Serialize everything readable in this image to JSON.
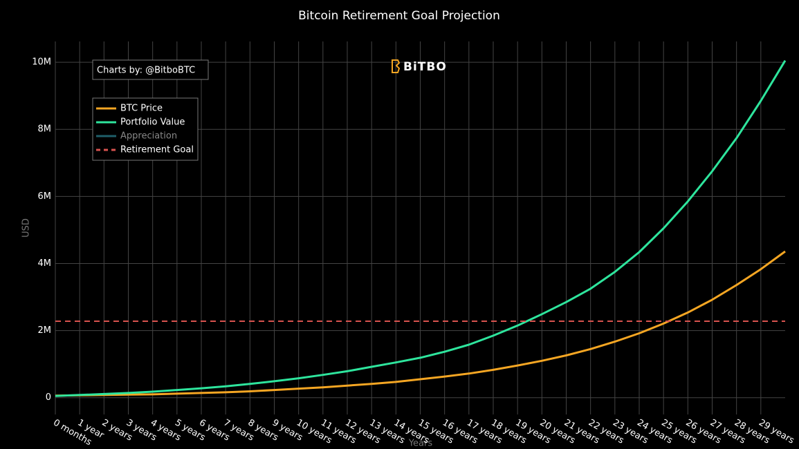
{
  "chart_data": {
    "type": "line",
    "title": "Bitcoin Retirement Goal Projection",
    "xlabel": "Years",
    "ylabel": "USD",
    "annotations": [
      "Charts by: @BitboBTC",
      "BiTBO"
    ],
    "x": [
      0,
      1,
      2,
      3,
      4,
      5,
      6,
      7,
      8,
      9,
      10,
      11,
      12,
      13,
      14,
      15,
      16,
      17,
      18,
      19,
      20,
      21,
      22,
      23,
      24,
      25,
      26,
      27,
      28,
      29,
      30
    ],
    "xlim": [
      0,
      30
    ],
    "xticks": [
      {
        "value": 0,
        "label": "0 months"
      },
      {
        "value": 1,
        "label": "1 year"
      },
      {
        "value": 2,
        "label": "2 years"
      },
      {
        "value": 3,
        "label": "3 years"
      },
      {
        "value": 4,
        "label": "4 years"
      },
      {
        "value": 5,
        "label": "5 years"
      },
      {
        "value": 6,
        "label": "6 years"
      },
      {
        "value": 7,
        "label": "7 years"
      },
      {
        "value": 8,
        "label": "8 years"
      },
      {
        "value": 9,
        "label": "9 years"
      },
      {
        "value": 10,
        "label": "10 years"
      },
      {
        "value": 11,
        "label": "11 years"
      },
      {
        "value": 12,
        "label": "12 years"
      },
      {
        "value": 13,
        "label": "13 years"
      },
      {
        "value": 14,
        "label": "14 years"
      },
      {
        "value": 15,
        "label": "15 years"
      },
      {
        "value": 16,
        "label": "16 years"
      },
      {
        "value": 17,
        "label": "17 years"
      },
      {
        "value": 18,
        "label": "18 years"
      },
      {
        "value": 19,
        "label": "19 years"
      },
      {
        "value": 20,
        "label": "20 years"
      },
      {
        "value": 21,
        "label": "21 years"
      },
      {
        "value": 22,
        "label": "22 years"
      },
      {
        "value": 23,
        "label": "23 years"
      },
      {
        "value": 24,
        "label": "24 years"
      },
      {
        "value": 25,
        "label": "25 years"
      },
      {
        "value": 26,
        "label": "26 years"
      },
      {
        "value": 27,
        "label": "27 years"
      },
      {
        "value": 28,
        "label": "28 years"
      },
      {
        "value": 29,
        "label": "29 years"
      }
    ],
    "ylim": [
      -500000,
      10620000
    ],
    "yticks": [
      0,
      {
        "value": 2000000,
        "label": "2M"
      },
      {
        "value": 4000000,
        "label": "4M"
      },
      {
        "value": 6000000,
        "label": "6M"
      },
      {
        "value": 8000000,
        "label": "8M"
      },
      {
        "value": 10000000,
        "label": "10M"
      }
    ],
    "grid": true,
    "legend": "upper left",
    "series": [
      {
        "name": "BTC Price",
        "color": "#f5a623",
        "values": [
          60000,
          70000,
          80000,
          90000,
          100000,
          120000,
          140000,
          160000,
          190000,
          230000,
          270000,
          310000,
          360000,
          410000,
          470000,
          550000,
          630000,
          720000,
          830000,
          960000,
          1100000,
          1260000,
          1450000,
          1670000,
          1920000,
          2210000,
          2540000,
          2920000,
          3360000,
          3830000,
          4360000
        ]
      },
      {
        "name": "Portfolio Value",
        "color": "#2ee59d",
        "values": [
          50000,
          80000,
          110000,
          140000,
          180000,
          230000,
          280000,
          340000,
          410000,
          490000,
          580000,
          680000,
          790000,
          920000,
          1050000,
          1190000,
          1370000,
          1580000,
          1850000,
          2150000,
          2490000,
          2850000,
          3250000,
          3750000,
          4340000,
          5050000,
          5850000,
          6750000,
          7740000,
          8850000,
          10050000
        ]
      },
      {
        "name": "Appreciation",
        "color": "#1f5f6a",
        "visible": false
      },
      {
        "name": "Retirement Goal",
        "color": "#d9534f",
        "dash": true,
        "value": 2280000
      }
    ]
  }
}
